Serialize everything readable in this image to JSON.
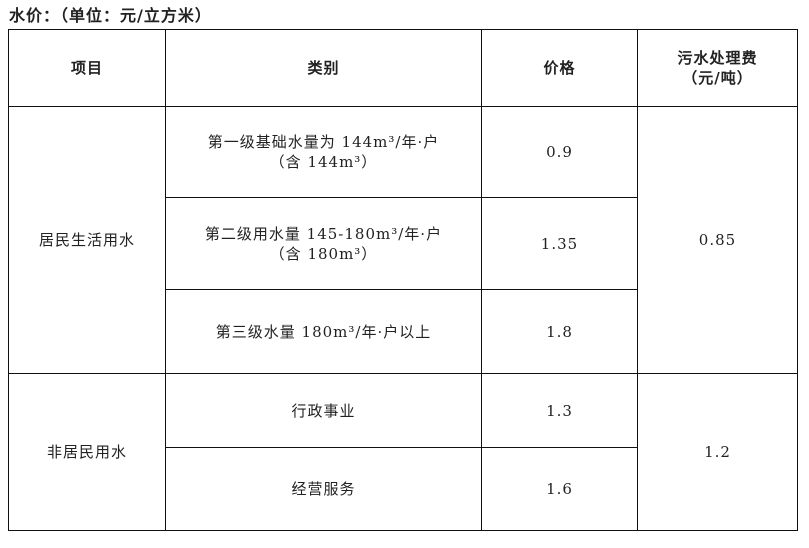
{
  "title": "水价：（单位：元/立方米）",
  "headers": {
    "item": "项目",
    "category": "类别",
    "price": "价格",
    "sewage_line1": "污水处理费",
    "sewage_line2": "（元/吨）"
  },
  "groups": [
    {
      "item": "居民生活用水",
      "sewage_fee": "0.85",
      "rows": [
        {
          "category_line1": "第一级基础水量为 144m³/年·户",
          "category_line2": "（含 144m³）",
          "price": "0.9"
        },
        {
          "category_line1": "第二级用水量 145-180m³/年·户",
          "category_line2": "（含 180m³）",
          "price": "1.35"
        },
        {
          "category_line1": "第三级水量 180m³/年·户以上",
          "price": "1.8"
        }
      ]
    },
    {
      "item": "非居民用水",
      "sewage_fee": "1.2",
      "rows": [
        {
          "category_line1": "行政事业",
          "price": "1.3"
        },
        {
          "category_line1": "经营服务",
          "price": "1.6"
        }
      ]
    }
  ]
}
